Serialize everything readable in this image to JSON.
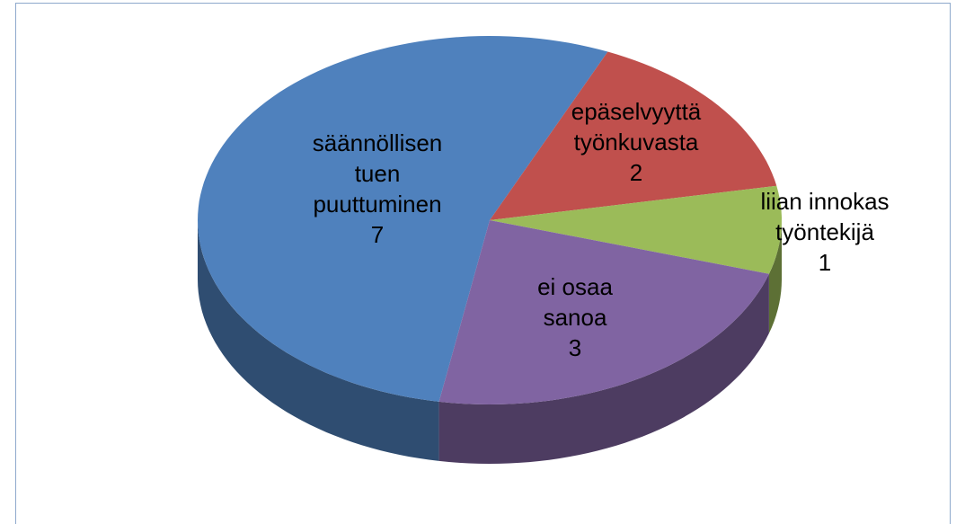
{
  "chart_data": {
    "type": "pie3d",
    "categories": [
      "säännöllisen tuen puuttuminen",
      "epäselvyyttä työnkuvasta",
      "liian innokas työntekijä",
      "ei osaa sanoa"
    ],
    "values": [
      7,
      2,
      1,
      3
    ],
    "colors": [
      "#4f81bd",
      "#c0504d",
      "#9bbb59",
      "#8064a2"
    ]
  }
}
